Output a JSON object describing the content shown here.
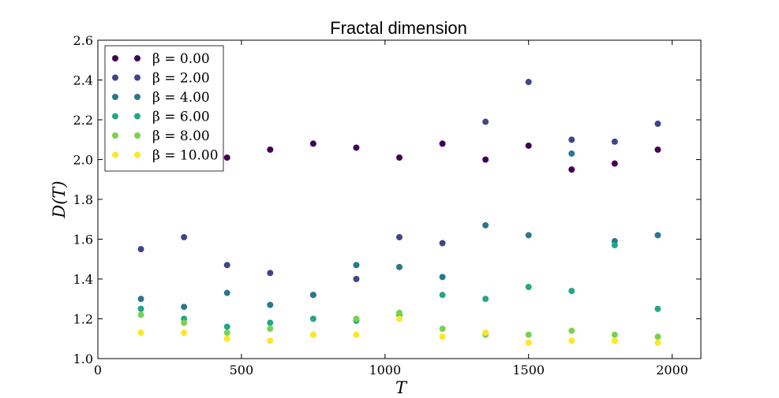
{
  "chart_data": {
    "type": "scatter",
    "title": "Fractal dimension",
    "xlabel": "T",
    "ylabel": "D(T)",
    "xlim": [
      0,
      2100
    ],
    "ylim": [
      1.0,
      2.6
    ],
    "xticks": [
      0,
      500,
      1000,
      1500,
      2000
    ],
    "yticks": [
      1.0,
      1.2,
      1.4,
      1.6,
      1.8,
      2.0,
      2.2,
      2.4,
      2.6
    ],
    "xtick_labels": [
      "0",
      "500",
      "1000",
      "1500",
      "2000"
    ],
    "ytick_labels": [
      "1.0",
      "1.2",
      "1.4",
      "1.6",
      "1.8",
      "2.0",
      "2.2",
      "2.4",
      "2.6"
    ],
    "grid": false,
    "legend_position": "upper-left",
    "x": [
      150,
      300,
      450,
      600,
      750,
      900,
      1050,
      1200,
      1350,
      1500,
      1650,
      1800,
      1950
    ],
    "series": [
      {
        "name": "β = 0.00",
        "color": "#440154",
        "values": [
          null,
          null,
          2.01,
          2.05,
          2.08,
          2.06,
          2.01,
          2.08,
          2.0,
          2.07,
          1.95,
          1.98,
          2.05
        ]
      },
      {
        "name": "β = 2.00",
        "color": "#414487",
        "values": [
          1.55,
          1.61,
          1.47,
          1.43,
          1.32,
          1.4,
          1.61,
          1.58,
          2.19,
          2.39,
          2.1,
          2.09,
          2.18
        ]
      },
      {
        "name": "β = 4.00",
        "color": "#2a788e",
        "values": [
          1.3,
          1.26,
          1.33,
          1.27,
          1.32,
          1.47,
          1.46,
          1.41,
          1.67,
          1.62,
          2.03,
          1.59,
          1.62
        ]
      },
      {
        "name": "β = 6.00",
        "color": "#22a884",
        "values": [
          1.25,
          1.2,
          1.16,
          1.18,
          1.2,
          1.19,
          1.22,
          1.32,
          1.3,
          1.36,
          1.34,
          1.57,
          1.25
        ]
      },
      {
        "name": "β = 8.00",
        "color": "#7ad151",
        "values": [
          1.22,
          1.18,
          1.13,
          1.15,
          1.12,
          1.2,
          1.23,
          1.15,
          1.12,
          1.12,
          1.14,
          1.12,
          1.11
        ]
      },
      {
        "name": "β = 10.00",
        "color": "#fde725",
        "values": [
          1.13,
          1.13,
          1.1,
          1.09,
          1.12,
          1.12,
          1.2,
          1.11,
          1.13,
          1.08,
          1.09,
          1.09,
          1.08
        ]
      }
    ]
  }
}
